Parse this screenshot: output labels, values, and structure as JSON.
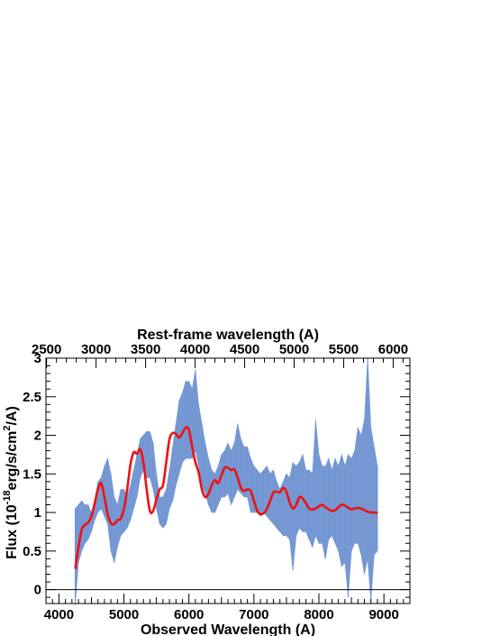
{
  "chart_data": {
    "type": "line",
    "title": "",
    "xlabel": "Observed Wavelength (A)",
    "ylabel_parts": {
      "pre": "Flux (10",
      "exp1": "-18",
      "mid": "erg/s/cm",
      "exp2": "2",
      "post": "/A)"
    },
    "x2label": "Rest-frame wavelength (A)",
    "xlim": [
      3800,
      9400
    ],
    "ylim": [
      -0.18,
      3.0
    ],
    "x_ticks": [
      4000,
      5000,
      6000,
      7000,
      8000,
      9000
    ],
    "y_ticks": [
      0,
      0.5,
      1,
      1.5,
      2,
      2.5,
      3
    ],
    "x2_ticks": [
      2500,
      3000,
      3500,
      4000,
      4500,
      5000,
      5500,
      6000
    ],
    "x2_per_x1": 1.5238,
    "zero_line": true,
    "colors": {
      "observed": "#7094d2",
      "smoothed": "#ee1111"
    },
    "series": [
      {
        "kind": "band",
        "x": [
          4250,
          4300,
          4350,
          4400,
          4450,
          4500,
          4550,
          4600,
          4650,
          4700,
          4750,
          4800,
          4850,
          4900,
          4950,
          5000,
          5050,
          5100,
          5150,
          5200,
          5250,
          5300,
          5350,
          5400,
          5450,
          5500,
          5550,
          5600,
          5650,
          5700,
          5750,
          5800,
          5850,
          5900,
          5950,
          6000,
          6050,
          6100,
          6150,
          6200,
          6250,
          6300,
          6350,
          6400,
          6450,
          6500,
          6550,
          6600,
          6650,
          6700,
          6750,
          6800,
          6850,
          6900,
          6950,
          7000,
          7050,
          7100,
          7150,
          7200,
          7250,
          7300,
          7350,
          7400,
          7450,
          7500,
          7550,
          7600,
          7650,
          7700,
          7750,
          7800,
          7850,
          7900,
          7950,
          8000,
          8050,
          8100,
          8150,
          8200,
          8250,
          8300,
          8350,
          8400,
          8450,
          8500,
          8550,
          8600,
          8650,
          8700,
          8750,
          8800,
          8850,
          8900
        ],
        "low": [
          -0.2,
          0.35,
          0.5,
          0.6,
          0.65,
          0.75,
          0.9,
          1.0,
          1.05,
          0.95,
          0.85,
          0.5,
          0.35,
          0.55,
          0.7,
          0.75,
          0.8,
          0.9,
          1.05,
          1.2,
          1.45,
          1.55,
          1.45,
          1.45,
          1.3,
          1.05,
          0.85,
          0.8,
          0.85,
          1.05,
          1.15,
          1.35,
          1.5,
          1.65,
          1.7,
          1.7,
          1.7,
          1.8,
          1.6,
          1.35,
          1.25,
          1.1,
          1.0,
          1.0,
          1.1,
          1.2,
          1.2,
          1.25,
          1.1,
          1.2,
          1.3,
          1.25,
          1.2,
          1.2,
          1.0,
          1.0,
          1.0,
          0.95,
          1.0,
          0.95,
          0.9,
          0.85,
          0.8,
          0.75,
          0.7,
          0.7,
          0.65,
          0.25,
          0.7,
          0.8,
          0.75,
          0.75,
          0.65,
          0.55,
          0.7,
          0.6,
          0.6,
          0.4,
          0.65,
          0.7,
          0.6,
          0.5,
          0.3,
          0.35,
          -0.1,
          0.5,
          0.6,
          0.6,
          0.45,
          0.2,
          0.4,
          -0.15,
          0.45,
          0.5
        ],
        "high": [
          1.05,
          1.1,
          1.15,
          1.1,
          1.1,
          1.0,
          1.15,
          1.4,
          1.45,
          1.6,
          1.7,
          1.5,
          1.2,
          1.1,
          1.3,
          1.3,
          1.2,
          1.35,
          1.55,
          1.75,
          1.95,
          2.0,
          2.05,
          2.05,
          1.9,
          1.5,
          1.2,
          1.2,
          1.3,
          1.55,
          1.85,
          2.15,
          2.45,
          2.55,
          2.7,
          2.7,
          2.6,
          2.85,
          2.4,
          2.15,
          1.9,
          1.7,
          1.55,
          1.5,
          1.6,
          1.75,
          1.8,
          1.9,
          1.8,
          1.9,
          2.15,
          1.95,
          1.85,
          1.85,
          1.7,
          1.6,
          1.55,
          1.5,
          1.55,
          1.6,
          1.5,
          1.55,
          1.4,
          1.3,
          1.4,
          1.5,
          1.45,
          1.65,
          1.6,
          1.65,
          1.75,
          1.55,
          1.55,
          1.5,
          2.2,
          1.75,
          1.6,
          1.6,
          1.7,
          1.55,
          1.7,
          1.6,
          1.75,
          1.6,
          1.75,
          1.7,
          1.8,
          2.1,
          2.0,
          2.2,
          3.0,
          2.1,
          1.85,
          1.6
        ]
      },
      {
        "kind": "line",
        "x": [
          4250,
          4300,
          4350,
          4400,
          4450,
          4500,
          4550,
          4600,
          4650,
          4700,
          4750,
          4800,
          4850,
          4900,
          4950,
          5000,
          5050,
          5100,
          5150,
          5200,
          5250,
          5300,
          5350,
          5400,
          5450,
          5500,
          5550,
          5600,
          5650,
          5700,
          5750,
          5800,
          5850,
          5900,
          5950,
          6000,
          6050,
          6100,
          6150,
          6200,
          6250,
          6300,
          6350,
          6400,
          6450,
          6500,
          6550,
          6600,
          6650,
          6700,
          6750,
          6800,
          6850,
          6900,
          6950,
          7000,
          7050,
          7100,
          7150,
          7200,
          7250,
          7300,
          7350,
          7400,
          7450,
          7500,
          7550,
          7600,
          7650,
          7700,
          7750,
          7800,
          7850,
          7900,
          7950,
          8000,
          8050,
          8100,
          8150,
          8200,
          8250,
          8300,
          8350,
          8400,
          8450,
          8500,
          8550,
          8600,
          8650,
          8700,
          8750,
          8800,
          8850,
          8900
        ],
        "y": [
          0.27,
          0.55,
          0.78,
          0.84,
          0.87,
          0.95,
          1.12,
          1.3,
          1.38,
          1.2,
          0.98,
          0.86,
          0.85,
          0.9,
          0.92,
          1.05,
          1.3,
          1.62,
          1.78,
          1.76,
          1.82,
          1.65,
          1.3,
          1.02,
          1.02,
          1.17,
          1.3,
          1.35,
          1.65,
          1.95,
          2.03,
          2.02,
          1.97,
          2.03,
          2.1,
          2.07,
          1.85,
          1.65,
          1.52,
          1.3,
          1.2,
          1.24,
          1.35,
          1.42,
          1.38,
          1.48,
          1.58,
          1.58,
          1.55,
          1.56,
          1.45,
          1.32,
          1.28,
          1.3,
          1.28,
          1.15,
          1.02,
          0.98,
          0.99,
          1.05,
          1.15,
          1.26,
          1.27,
          1.26,
          1.32,
          1.27,
          1.13,
          1.05,
          1.1,
          1.2,
          1.18,
          1.12,
          1.05,
          1.04,
          1.05,
          1.08,
          1.1,
          1.07,
          1.04,
          1.02,
          1.03,
          1.07,
          1.1,
          1.09,
          1.06,
          1.04,
          1.05,
          1.06,
          1.05,
          1.03,
          1.01,
          1.0,
          1.0,
          0.99
        ]
      }
    ]
  }
}
